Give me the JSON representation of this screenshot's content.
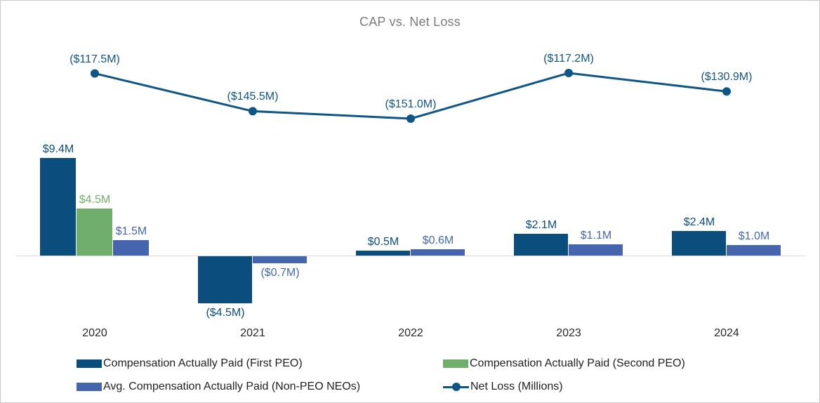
{
  "title": "CAP vs. Net Loss",
  "chart_data": {
    "type": "combo-bar-line",
    "title": "CAP vs. Net Loss",
    "categories": [
      "2020",
      "2021",
      "2022",
      "2023",
      "2024"
    ],
    "series": [
      {
        "key": "cap-first-peo",
        "name": "Compensation Actually Paid (First PEO)",
        "chart": "bar",
        "color": "#0B4E7D",
        "values": [
          9.4,
          -4.5,
          0.5,
          2.1,
          2.4
        ],
        "labels": [
          "$9.4M",
          "($4.5M)",
          "$0.5M",
          "$2.1M",
          "$2.4M"
        ]
      },
      {
        "key": "cap-second-peo",
        "name": "Compensation Actually Paid (Second PEO)",
        "chart": "bar",
        "color": "#6FAF6B",
        "values": [
          4.5,
          null,
          null,
          null,
          null
        ],
        "labels": [
          "$4.5M",
          null,
          null,
          null,
          null
        ]
      },
      {
        "key": "avg-cap-non-peo-neos",
        "name": "Avg. Compensation Actually Paid (Non-PEO NEOs)",
        "chart": "bar",
        "color": "#4566AE",
        "values": [
          1.5,
          -0.7,
          0.6,
          1.1,
          1.0
        ],
        "labels": [
          "$1.5M",
          "($0.7M)",
          "$0.6M",
          "$1.1M",
          "$1.0M"
        ]
      },
      {
        "key": "net-loss",
        "name": "Net Loss (Millions)",
        "chart": "line",
        "color": "#0F5586",
        "values": [
          -117.5,
          -145.5,
          -151.0,
          -117.2,
          -130.9
        ],
        "labels": [
          "($117.5M)",
          "($145.5M)",
          "($151.0M)",
          "($117.2M)",
          "($130.9M)"
        ]
      }
    ],
    "units": "Millions",
    "grid": false,
    "legend_position": "bottom",
    "axis_line_color": "#D9D9D9",
    "title_color": "#7C7C7C"
  }
}
